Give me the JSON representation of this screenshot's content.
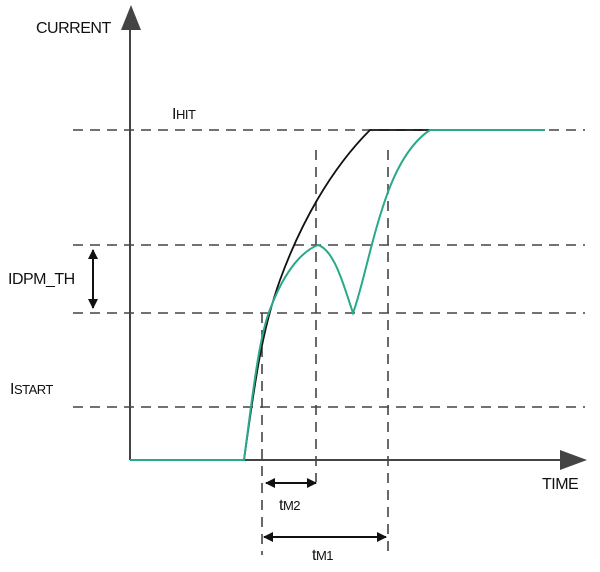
{
  "labels": {
    "y_axis": "CURRENT",
    "x_axis": "TIME",
    "i_hit": {
      "main": "I",
      "sub": "HIT"
    },
    "idpm_th": "IDPM_TH",
    "i_start": {
      "main": "I",
      "sub": "START"
    },
    "t_m2": {
      "main": "t",
      "sub": "M2"
    },
    "t_m1": {
      "main": "t",
      "sub": "M1"
    }
  },
  "colors": {
    "reference_curve": "#111111",
    "actual_curve": "#2aa88a",
    "dashed": "#444444"
  }
}
